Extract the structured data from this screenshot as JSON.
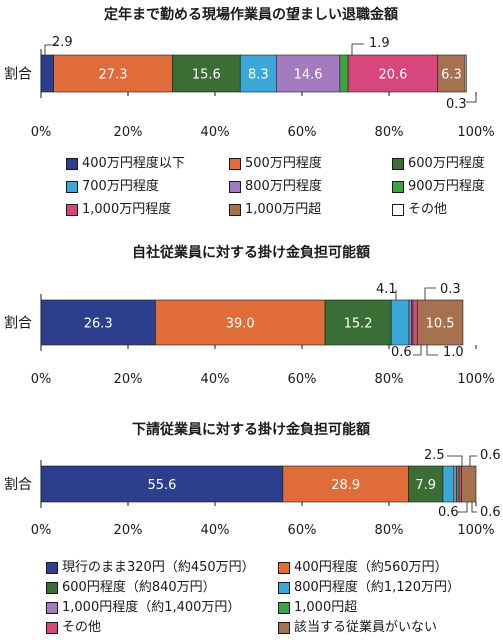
{
  "colors": {
    "blue": "#2b3f8e",
    "orange": "#e06c3a",
    "dark_green": "#3b6e34",
    "light_blue": "#3ba8d8",
    "purple": "#a57bc0",
    "green": "#3fa33f",
    "pink": "#d8467c",
    "brown": "#a6714e",
    "white": "#ffffff"
  },
  "axis": {
    "ticks": [
      "0%",
      "20%",
      "40%",
      "60%",
      "80%",
      "100%"
    ]
  },
  "chart_data": [
    {
      "type": "bar",
      "orientation": "horizontal-stacked",
      "title": "定年まで勤める現場作業員の望ましい退職金額",
      "categories": [
        "割合"
      ],
      "xlim": [
        0,
        100
      ],
      "series": [
        {
          "name": "400万円程度以下",
          "value": 2.9,
          "label": "2.9",
          "color": "blue"
        },
        {
          "name": "500万円程度",
          "value": 27.3,
          "label": "27.3",
          "color": "orange"
        },
        {
          "name": "600万円程度",
          "value": 15.6,
          "label": "15.6",
          "color": "dark_green"
        },
        {
          "name": "700万円程度",
          "value": 8.3,
          "label": "8.3",
          "color": "light_blue"
        },
        {
          "name": "800万円程度",
          "value": 14.6,
          "label": "14.6",
          "color": "purple"
        },
        {
          "name": "900万円程度",
          "value": 1.9,
          "label": "1.9",
          "color": "green"
        },
        {
          "name": "1,000万円程度",
          "value": 20.6,
          "label": "20.6",
          "color": "pink"
        },
        {
          "name": "1,000万円超",
          "value": 6.3,
          "label": "6.3",
          "color": "brown"
        },
        {
          "name": "その他",
          "value": 0.3,
          "label": "0.3",
          "color": "white"
        }
      ]
    },
    {
      "type": "bar",
      "orientation": "horizontal-stacked",
      "title": "自社従業員に対する掛け金負担可能額",
      "categories": [
        "割合"
      ],
      "xlim": [
        0,
        100
      ],
      "series": [
        {
          "name": "現行のまま320円（約450万円）",
          "value": 26.3,
          "label": "26.3",
          "color": "blue"
        },
        {
          "name": "400円程度（約560万円）",
          "value": 39.0,
          "label": "39.0",
          "color": "orange"
        },
        {
          "name": "600円程度（約840万円）",
          "value": 15.2,
          "label": "15.2",
          "color": "dark_green"
        },
        {
          "name": "800円程度（約1,120万円）",
          "value": 4.1,
          "label": "4.1",
          "color": "light_blue"
        },
        {
          "name": "1,000円程度（約1,400万円）",
          "value": 0.6,
          "label": "0.6",
          "color": "purple"
        },
        {
          "name": "1,000円超",
          "value": 0.3,
          "label": "0.3",
          "color": "green"
        },
        {
          "name": "その他",
          "value": 1.0,
          "label": "1.0",
          "color": "pink"
        },
        {
          "name": "該当する従業員がいない",
          "value": 10.5,
          "label": "10.5",
          "color": "brown"
        }
      ]
    },
    {
      "type": "bar",
      "orientation": "horizontal-stacked",
      "title": "下請従業員に対する掛け金負担可能額",
      "categories": [
        "割合"
      ],
      "xlim": [
        0,
        100
      ],
      "series": [
        {
          "name": "現行のまま320円（約450万円）",
          "value": 55.6,
          "label": "55.6",
          "color": "blue"
        },
        {
          "name": "400円程度（約560万円）",
          "value": 28.9,
          "label": "28.9",
          "color": "orange"
        },
        {
          "name": "600円程度（約840万円）",
          "value": 7.9,
          "label": "7.9",
          "color": "dark_green"
        },
        {
          "name": "800円程度（約1,120万円）",
          "value": 2.5,
          "label": "2.5",
          "color": "light_blue"
        },
        {
          "name": "1,000円程度（約1,400万円）",
          "value": 0.6,
          "label": "0.6",
          "color": "purple"
        },
        {
          "name": "1,000円超",
          "value": 0.6,
          "label": "0.6",
          "color": "green"
        },
        {
          "name": "その他",
          "value": 0.6,
          "label": "0.6",
          "color": "pink"
        },
        {
          "name": "該当する従業員がいない",
          "value": 3.3,
          "label": "",
          "color": "brown"
        }
      ]
    }
  ],
  "legends": {
    "retirement": [
      {
        "label": "400万円程度以下",
        "color": "blue"
      },
      {
        "label": "500万円程度",
        "color": "orange"
      },
      {
        "label": "600万円程度",
        "color": "dark_green"
      },
      {
        "label": "700万円程度",
        "color": "light_blue"
      },
      {
        "label": "800万円程度",
        "color": "purple"
      },
      {
        "label": "900万円程度",
        "color": "green"
      },
      {
        "label": "1,000万円程度",
        "color": "pink"
      },
      {
        "label": "1,000万円超",
        "color": "brown"
      },
      {
        "label": "その他",
        "color": "white"
      }
    ],
    "contribution": [
      {
        "label": "現行のまま320円（約450万円）",
        "color": "blue"
      },
      {
        "label": "400円程度（約560万円）",
        "color": "orange"
      },
      {
        "label": "600円程度（約840万円）",
        "color": "dark_green"
      },
      {
        "label": "800円程度（約1,120万円）",
        "color": "light_blue"
      },
      {
        "label": "1,000円程度（約1,400万円）",
        "color": "purple"
      },
      {
        "label": "1,000円超",
        "color": "green"
      },
      {
        "label": "その他",
        "color": "pink"
      },
      {
        "label": "該当する従業員がいない",
        "color": "brown"
      }
    ]
  }
}
